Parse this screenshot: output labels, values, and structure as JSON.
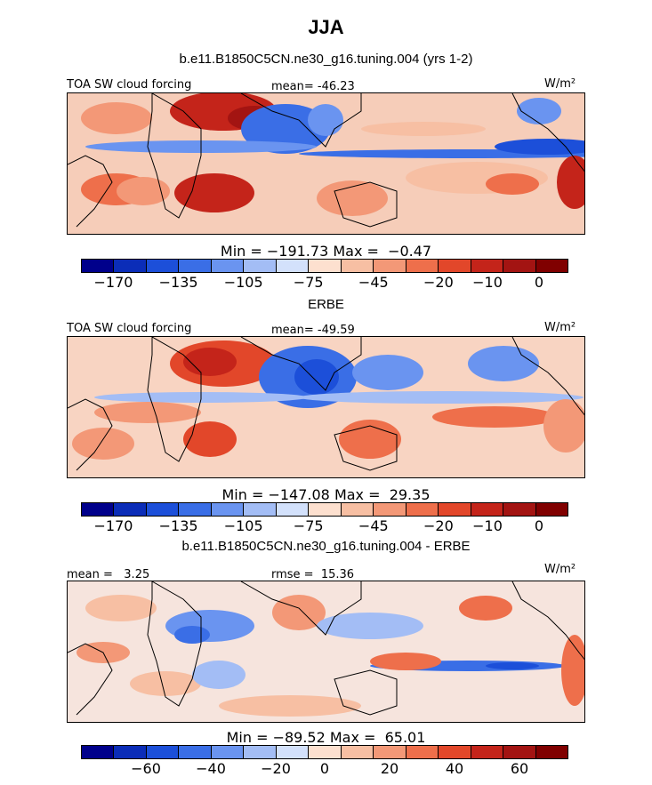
{
  "title": "JJA",
  "colors": {
    "palette": [
      "#00008b",
      "#0b2db8",
      "#1c4fd9",
      "#3a6ee6",
      "#6a94f0",
      "#a3bdf5",
      "#d3e1fb",
      "#fde0cf",
      "#f7bfa3",
      "#f39877",
      "#ee6f4b",
      "#e2472a",
      "#c4241a",
      "#a31412",
      "#800000"
    ],
    "land_outline": "#000000"
  },
  "panels": [
    {
      "subtitle": "b.e11.B1850C5CN.ne30_g16.tuning.004 (yrs 1-2)",
      "left_label": "TOA SW cloud forcing",
      "center_label": "mean= -46.23",
      "right_label": "W/m²",
      "stats_label": "Min = −191.73 Max =  −0.47",
      "tick_labels": [
        "−170",
        "−135",
        "−105",
        "−75",
        "−45",
        "−20",
        "−10",
        "0"
      ]
    },
    {
      "subtitle": "ERBE",
      "left_label": "TOA SW cloud forcing",
      "center_label": "mean= -49.59",
      "right_label": "W/m²",
      "stats_label": "Min = −147.08 Max =  29.35",
      "tick_labels": [
        "−170",
        "−135",
        "−105",
        "−75",
        "−45",
        "−20",
        "−10",
        "0"
      ]
    },
    {
      "subtitle": "b.e11.B1850C5CN.ne30_g16.tuning.004 - ERBE",
      "left_label": "mean =   3.25",
      "center_label": "rmse =  15.36",
      "right_label": "W/m²",
      "stats_label": "Min = −89.52 Max =  65.01",
      "tick_labels": [
        "−60",
        "−40",
        "−20",
        "0",
        "20",
        "40",
        "60"
      ]
    }
  ],
  "chart_data": [
    {
      "type": "heatmap",
      "title": "b.e11.B1850C5CN.ne30_g16.tuning.004 (yrs 1-2)",
      "variable": "TOA SW cloud forcing",
      "units": "W/m²",
      "mean": -46.23,
      "min": -191.73,
      "max": -0.47,
      "colorbar_levels": [
        -170,
        -135,
        -105,
        -75,
        -45,
        -20,
        -10,
        0
      ]
    },
    {
      "type": "heatmap",
      "title": "ERBE",
      "variable": "TOA SW cloud forcing",
      "units": "W/m²",
      "mean": -49.59,
      "min": -147.08,
      "max": 29.35,
      "colorbar_levels": [
        -170,
        -135,
        -105,
        -75,
        -45,
        -20,
        -10,
        0
      ]
    },
    {
      "type": "heatmap",
      "title": "b.e11.B1850C5CN.ne30_g16.tuning.004 - ERBE",
      "units": "W/m²",
      "mean": 3.25,
      "rmse": 15.36,
      "min": -89.52,
      "max": 65.01,
      "colorbar_levels": [
        -60,
        -40,
        -20,
        0,
        20,
        40,
        60
      ]
    }
  ]
}
